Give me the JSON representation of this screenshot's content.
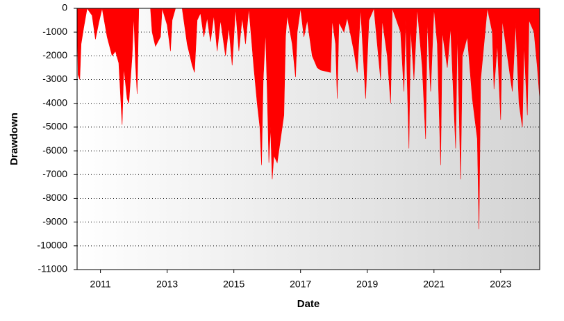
{
  "chart_data": {
    "type": "area",
    "xlabel": "Date",
    "ylabel": "Drawdown",
    "xlim": [
      2010.3,
      2024.17
    ],
    "xticks": [
      2011,
      2013,
      2015,
      2017,
      2019,
      2021,
      2023
    ],
    "ylim": [
      -11000,
      0
    ],
    "yticks": [
      0,
      -1000,
      -2000,
      -3000,
      -4000,
      -5000,
      -6000,
      -7000,
      -8000,
      -9000,
      -10000,
      -11000
    ],
    "grid": true,
    "series": [
      {
        "name": "Drawdown",
        "color": "#ff0000",
        "x": [
          2010.3,
          2010.33,
          2010.38,
          2010.42,
          2010.5,
          2010.6,
          2010.75,
          2010.85,
          2010.95,
          2011.05,
          2011.2,
          2011.35,
          2011.45,
          2011.55,
          2011.65,
          2011.7,
          2011.8,
          2011.85,
          2011.95,
          2012.0,
          2012.05,
          2012.1,
          2012.15,
          2012.5,
          2012.55,
          2012.65,
          2012.8,
          2012.85,
          2013.0,
          2013.1,
          2013.15,
          2013.25,
          2013.45,
          2013.6,
          2013.75,
          2013.82,
          2013.9,
          2014.0,
          2014.1,
          2014.2,
          2014.3,
          2014.4,
          2014.5,
          2014.6,
          2014.75,
          2014.85,
          2014.95,
          2015.05,
          2015.15,
          2015.25,
          2015.35,
          2015.45,
          2015.6,
          2015.7,
          2015.78,
          2015.83,
          2015.88,
          2015.95,
          2016.0,
          2016.05,
          2016.1,
          2016.15,
          2016.2,
          2016.3,
          2016.4,
          2016.5,
          2016.55,
          2016.6,
          2016.75,
          2016.85,
          2016.9,
          2017.0,
          2017.1,
          2017.2,
          2017.35,
          2017.5,
          2017.6,
          2017.9,
          2017.95,
          2018.05,
          2018.1,
          2018.15,
          2018.3,
          2018.4,
          2018.6,
          2018.7,
          2018.8,
          2018.95,
          2019.05,
          2019.2,
          2019.3,
          2019.4,
          2019.45,
          2019.6,
          2019.7,
          2019.75,
          2020.0,
          2020.1,
          2020.15,
          2020.25,
          2020.3,
          2020.4,
          2020.5,
          2020.65,
          2020.75,
          2020.8,
          2020.9,
          2021.0,
          2021.1,
          2021.2,
          2021.25,
          2021.4,
          2021.5,
          2021.65,
          2021.7,
          2021.8,
          2021.85,
          2022.0,
          2022.15,
          2022.3,
          2022.35,
          2022.4,
          2022.5,
          2022.6,
          2022.75,
          2022.8,
          2022.9,
          2023.0,
          2023.05,
          2023.2,
          2023.35,
          2023.45,
          2023.55,
          2023.65,
          2023.7,
          2023.8,
          2023.85,
          2024.0,
          2024.1,
          2024.17
        ],
        "values": [
          0,
          -2800,
          -3000,
          -1500,
          -800,
          0,
          -300,
          -1300,
          -600,
          0,
          -1200,
          -2000,
          -1800,
          -2300,
          -4900,
          -2500,
          -3800,
          -4000,
          -2000,
          -300,
          -2300,
          -3600,
          0,
          0,
          -1000,
          -1600,
          -1200,
          0,
          -700,
          -1800,
          -500,
          0,
          0,
          -1500,
          -2400,
          -2700,
          -500,
          -200,
          -1200,
          -400,
          -1400,
          -300,
          -1800,
          -500,
          -2000,
          -800,
          -2400,
          0,
          -1800,
          -400,
          -1500,
          0,
          -2500,
          -4000,
          -5000,
          -6600,
          -3000,
          -1000,
          -3500,
          -6500,
          -5000,
          -7200,
          -6200,
          -6500,
          -5500,
          -4500,
          -1200,
          -300,
          -1500,
          -2900,
          -1000,
          0,
          -1200,
          -500,
          -2000,
          -2500,
          -2600,
          -2700,
          -500,
          -1500,
          -3800,
          -600,
          -1000,
          -400,
          -1800,
          -2700,
          0,
          -3800,
          -500,
          0,
          -1500,
          -3000,
          -500,
          -2000,
          -4000,
          0,
          -1000,
          -3500,
          -500,
          -5900,
          -800,
          -3000,
          0,
          -2500,
          -5500,
          -500,
          -3500,
          0,
          -1500,
          -6600,
          -1000,
          -2500,
          -800,
          -5900,
          -1000,
          -7200,
          -2000,
          -1200,
          -3800,
          -5500,
          -9300,
          -3000,
          -1500,
          0,
          -1000,
          -3400,
          -1500,
          -4700,
          -500,
          -2000,
          -3500,
          -600,
          -4000,
          -5000,
          -1500,
          -4500,
          -500,
          -1000,
          -2500,
          -3800
        ]
      }
    ]
  }
}
